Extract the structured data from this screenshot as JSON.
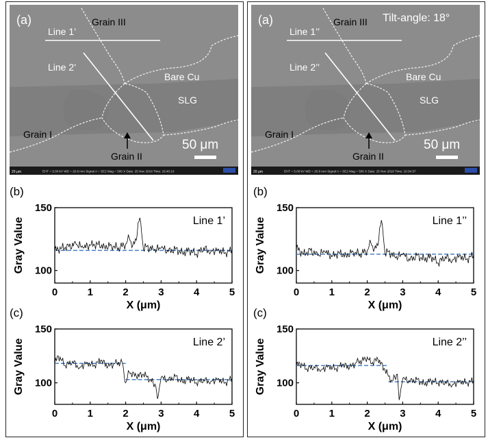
{
  "columns": [
    {
      "id": "left",
      "sem": {
        "panel_label": "(a)",
        "tilt_label": "",
        "labels": {
          "line1": "Line 1’",
          "line2": "Line 2’",
          "grain1": "Grain I",
          "grain2": "Grain II",
          "grain3": "Grain III",
          "bare": "Bare Cu",
          "slg": "SLG",
          "scale": "50 μm"
        },
        "info_bar": "EHT = 5.00 kV    WD = 20.8 mm    Signal A = SE2    Mag = 500 X    Date: 25 Nov 2018    Time: 16:40:10",
        "mini_scale": "20 μm"
      },
      "charts": {
        "b": {
          "panel_label": "(b)",
          "line_label": "Line 1’",
          "type": "line",
          "xlabel": "X (μm)",
          "ylabel": "Gray Value",
          "xlim": [
            0,
            5
          ],
          "ylim": [
            90,
            150
          ],
          "xticks": [
            "0",
            "1",
            "2",
            "3",
            "4",
            "5"
          ],
          "yticks": [
            "100",
            "150"
          ],
          "series": [
            {
              "x": [
                0,
                0.2,
                0.4,
                0.6,
                0.8,
                1.0,
                1.2,
                1.4,
                1.6,
                1.8,
                2.0,
                2.1,
                2.2,
                2.3,
                2.35,
                2.4,
                2.45,
                2.5,
                2.6,
                2.8,
                3.0,
                3.2,
                3.4,
                3.6,
                3.8,
                4.0,
                4.2,
                4.4,
                4.6,
                4.8,
                5.0
              ],
              "y": [
                116,
                118,
                119,
                121,
                118,
                120,
                121,
                119,
                120,
                118,
                121,
                126,
                120,
                124,
                138,
                142,
                130,
                117,
                119,
                116,
                118,
                115,
                117,
                114,
                116,
                113,
                118,
                115,
                117,
                114,
                116
              ]
            }
          ],
          "baseline": 116
        },
        "c": {
          "panel_label": "(c)",
          "line_label": "Line 2’",
          "type": "line",
          "xlabel": "X (μm)",
          "ylabel": "Gray Value",
          "xlim": [
            0,
            5
          ],
          "ylim": [
            80,
            150
          ],
          "xticks": [
            "0",
            "1",
            "2",
            "3",
            "4",
            "5"
          ],
          "yticks": [
            "100",
            "150"
          ],
          "series": [
            {
              "x": [
                0,
                0.1,
                0.3,
                0.5,
                0.7,
                0.9,
                1.1,
                1.3,
                1.5,
                1.7,
                1.9,
                2.0,
                2.1,
                2.3,
                2.5,
                2.7,
                2.85,
                2.9,
                3.0,
                3.2,
                3.4,
                3.6,
                3.8,
                4.0,
                4.2,
                4.4,
                4.6,
                4.8,
                5.0
              ],
              "y": [
                118,
                125,
                116,
                120,
                114,
                119,
                116,
                121,
                115,
                118,
                119,
                100,
                110,
                106,
                108,
                103,
                97,
                85,
                105,
                102,
                106,
                101,
                104,
                100,
                103,
                101,
                104,
                100,
                104
              ]
            }
          ],
          "baselines": [
            {
              "x0": 0,
              "x1": 2.0,
              "y": 118
            },
            {
              "x0": 2.0,
              "x1": 5,
              "y": 103
            }
          ]
        }
      }
    },
    {
      "id": "right",
      "sem": {
        "panel_label": "(a)",
        "tilt_label": "Tilt-angle: 18°",
        "labels": {
          "line1": "Line 1’’",
          "line2": "Line 2’’",
          "grain1": "Grain I",
          "grain2": "Grain II",
          "grain3": "Grain III",
          "bare": "Bare Cu",
          "slg": "SLG",
          "scale": "50 μm"
        },
        "info_bar": "EHT = 5.00 kV    WD = 20.8 mm    Signal A = SE2    Mag = 500 X    Date: 25 Nov 2018    Time: 10:34:37",
        "mini_scale": "20 μm"
      },
      "charts": {
        "b": {
          "panel_label": "(b)",
          "line_label": "Line 1’’",
          "type": "line",
          "xlabel": "X (μm)",
          "ylabel": "Gray Value",
          "xlim": [
            0,
            5
          ],
          "ylim": [
            90,
            150
          ],
          "xticks": [
            "0",
            "1",
            "2",
            "3",
            "4",
            "5"
          ],
          "yticks": [
            "100",
            "150"
          ],
          "series": [
            {
              "x": [
                0,
                0.2,
                0.4,
                0.6,
                0.8,
                1.0,
                1.2,
                1.4,
                1.6,
                1.8,
                2.0,
                2.1,
                2.2,
                2.3,
                2.35,
                2.4,
                2.45,
                2.5,
                2.6,
                2.8,
                3.0,
                3.2,
                3.4,
                3.6,
                3.8,
                4.0,
                4.2,
                4.4,
                4.6,
                4.8,
                5.0
              ],
              "y": [
                118,
                113,
                116,
                112,
                115,
                111,
                114,
                112,
                115,
                113,
                116,
                122,
                117,
                120,
                134,
                140,
                128,
                113,
                115,
                110,
                113,
                108,
                112,
                109,
                111,
                106,
                111,
                108,
                112,
                109,
                112
              ]
            }
          ],
          "baseline": 113
        },
        "c": {
          "panel_label": "(c)",
          "line_label": "Line 2’’",
          "type": "line",
          "xlabel": "X (μm)",
          "ylabel": "Gray Value",
          "xlim": [
            0,
            5
          ],
          "ylim": [
            80,
            150
          ],
          "xticks": [
            "0",
            "1",
            "2",
            "3",
            "4",
            "5"
          ],
          "yticks": [
            "100",
            "150"
          ],
          "series": [
            {
              "x": [
                0,
                0.1,
                0.3,
                0.5,
                0.7,
                0.9,
                1.1,
                1.3,
                1.5,
                1.7,
                1.9,
                2.0,
                2.1,
                2.3,
                2.5,
                2.6,
                2.7,
                2.85,
                2.9,
                3.0,
                3.2,
                3.4,
                3.6,
                3.8,
                4.0,
                4.2,
                4.4,
                4.6,
                4.8,
                5.0
              ],
              "y": [
                116,
                118,
                113,
                115,
                112,
                116,
                113,
                117,
                114,
                119,
                121,
                124,
                118,
                122,
                112,
                106,
                102,
                108,
                84,
                104,
                101,
                103,
                99,
                102,
                100,
                101,
                98,
                102,
                100,
                102
              ]
            }
          ],
          "baselines": [
            {
              "x0": 0,
              "x1": 2.6,
              "y": 116
            },
            {
              "x0": 2.6,
              "x1": 5,
              "y": 101
            }
          ]
        }
      }
    }
  ],
  "colors": {
    "trace": "#000000",
    "baseline": "#4a7fc1",
    "sem_bg": "#8c8c8c",
    "sem_dark": "#6f6f6f",
    "sem_bar": "#1a1a1a",
    "boundary": "#f2f2f2"
  }
}
